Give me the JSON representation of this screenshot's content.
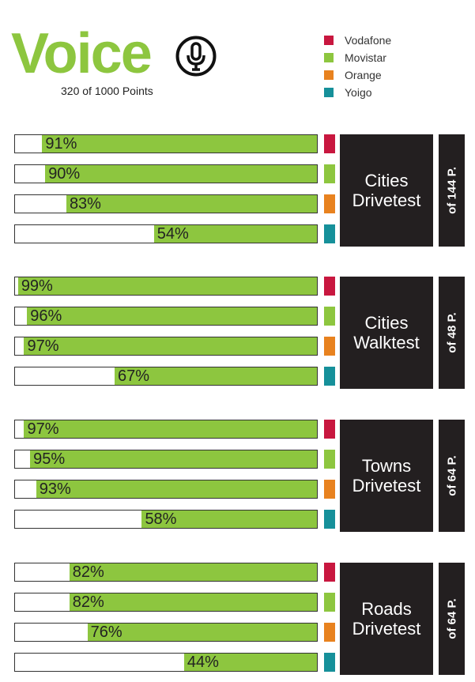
{
  "header": {
    "title": "Voice",
    "subtitle": "320 of 1000 Points",
    "icon": "microphone-icon"
  },
  "legend": [
    {
      "name": "Vodafone",
      "color": "#c8173f"
    },
    {
      "name": "Movistar",
      "color": "#8dc63f"
    },
    {
      "name": "Orange",
      "color": "#e8821f"
    },
    {
      "name": "Yoigo",
      "color": "#16909a"
    }
  ],
  "chart_data": {
    "type": "bar",
    "title": "Voice",
    "subtitle": "320 of 1000 Points",
    "series_names": [
      "Vodafone",
      "Movistar",
      "Orange",
      "Yoigo"
    ],
    "unit": "%",
    "xlim": [
      0,
      100
    ],
    "groups": [
      {
        "name_line1": "Cities",
        "name_line2": "Drivetest",
        "points": "of 144 P.",
        "values": [
          91,
          90,
          83,
          54
        ],
        "labels": [
          "91%",
          "90%",
          "83%",
          "54%"
        ]
      },
      {
        "name_line1": "Cities",
        "name_line2": "Walktest",
        "points": "of 48 P.",
        "values": [
          99,
          96,
          97,
          67
        ],
        "labels": [
          "99%",
          "96%",
          "97%",
          "67%"
        ]
      },
      {
        "name_line1": "Towns",
        "name_line2": "Drivetest",
        "points": "of 64 P.",
        "values": [
          97,
          95,
          93,
          58
        ],
        "labels": [
          "97%",
          "95%",
          "93%",
          "58%"
        ]
      },
      {
        "name_line1": "Roads",
        "name_line2": "Drivetest",
        "points": "of 64 P.",
        "values": [
          82,
          82,
          76,
          44
        ],
        "labels": [
          "82%",
          "82%",
          "76%",
          "44%"
        ]
      }
    ]
  }
}
